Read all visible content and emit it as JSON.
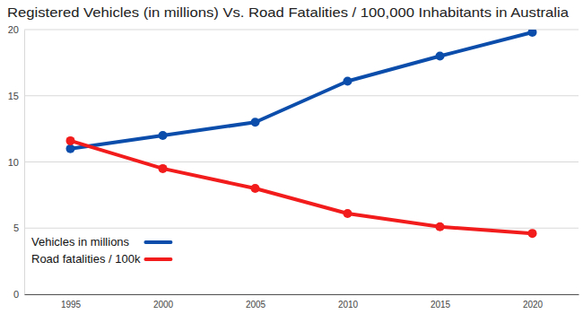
{
  "chart_data": {
    "type": "line",
    "title": "Registered Vehicles (in millions) Vs. Road Fatalities / 100,000 Inhabitants in Australia",
    "categories": [
      "1995",
      "2000",
      "2005",
      "2010",
      "2015",
      "2020"
    ],
    "series": [
      {
        "name": "Vehicles in millions",
        "color": "#0b4dab",
        "values": [
          11,
          12,
          13,
          16.1,
          18,
          19.8
        ]
      },
      {
        "name": "Road fatalities / 100k",
        "color": "#f21c1c",
        "values": [
          11.6,
          9.5,
          8,
          6.1,
          5.1,
          4.6
        ]
      }
    ],
    "ylim": [
      0,
      20
    ],
    "yticks": [
      0,
      5,
      10,
      15,
      20
    ],
    "grid": true,
    "legend": "lower left",
    "marker": "circle"
  }
}
